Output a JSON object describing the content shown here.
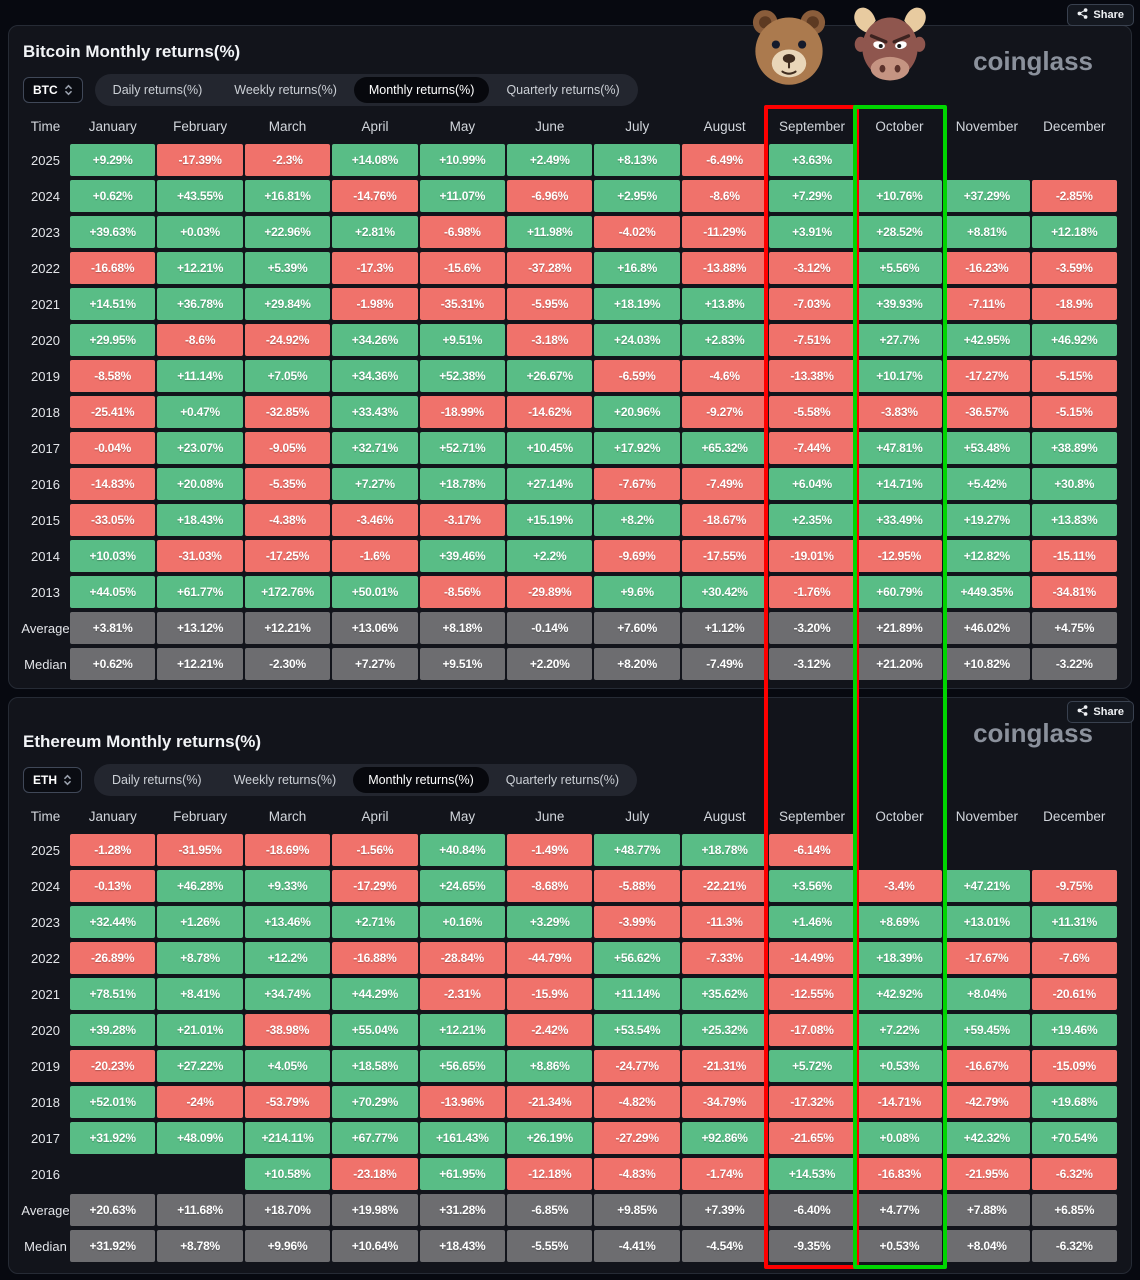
{
  "brand": "coinglass",
  "share_label": "Share",
  "time_label": "Time",
  "months": [
    "January",
    "February",
    "March",
    "April",
    "May",
    "June",
    "July",
    "August",
    "September",
    "October",
    "November",
    "December"
  ],
  "tabs": [
    "Daily returns(%)",
    "Weekly returns(%)",
    "Monthly returns(%)",
    "Quarterly returns(%)"
  ],
  "active_tab": "Monthly returns(%)",
  "colors": {
    "positive_cell": "#59bd86",
    "negative_cell": "#f0726b",
    "summary_cell": "#6d6d70",
    "september_box": "#fe0000",
    "october_box": "#00d600",
    "panel_bg": "#12141b",
    "page_bg": "#070910"
  },
  "icons": [
    "share-icon",
    "unfold-icon",
    "bear-emoji-icon",
    "bull-emoji-icon"
  ],
  "bitcoin": {
    "title": "Bitcoin Monthly returns(%)",
    "symbol": "BTC",
    "rows": [
      {
        "label": "2025",
        "values": [
          "+9.29%",
          "-17.39%",
          "-2.3%",
          "+14.08%",
          "+10.99%",
          "+2.49%",
          "+8.13%",
          "-6.49%",
          "+3.63%",
          "",
          "",
          ""
        ]
      },
      {
        "label": "2024",
        "values": [
          "+0.62%",
          "+43.55%",
          "+16.81%",
          "-14.76%",
          "+11.07%",
          "-6.96%",
          "+2.95%",
          "-8.6%",
          "+7.29%",
          "+10.76%",
          "+37.29%",
          "-2.85%"
        ]
      },
      {
        "label": "2023",
        "values": [
          "+39.63%",
          "+0.03%",
          "+22.96%",
          "+2.81%",
          "-6.98%",
          "+11.98%",
          "-4.02%",
          "-11.29%",
          "+3.91%",
          "+28.52%",
          "+8.81%",
          "+12.18%"
        ]
      },
      {
        "label": "2022",
        "values": [
          "-16.68%",
          "+12.21%",
          "+5.39%",
          "-17.3%",
          "-15.6%",
          "-37.28%",
          "+16.8%",
          "-13.88%",
          "-3.12%",
          "+5.56%",
          "-16.23%",
          "-3.59%"
        ]
      },
      {
        "label": "2021",
        "values": [
          "+14.51%",
          "+36.78%",
          "+29.84%",
          "-1.98%",
          "-35.31%",
          "-5.95%",
          "+18.19%",
          "+13.8%",
          "-7.03%",
          "+39.93%",
          "-7.11%",
          "-18.9%"
        ]
      },
      {
        "label": "2020",
        "values": [
          "+29.95%",
          "-8.6%",
          "-24.92%",
          "+34.26%",
          "+9.51%",
          "-3.18%",
          "+24.03%",
          "+2.83%",
          "-7.51%",
          "+27.7%",
          "+42.95%",
          "+46.92%"
        ]
      },
      {
        "label": "2019",
        "values": [
          "-8.58%",
          "+11.14%",
          "+7.05%",
          "+34.36%",
          "+52.38%",
          "+26.67%",
          "-6.59%",
          "-4.6%",
          "-13.38%",
          "+10.17%",
          "-17.27%",
          "-5.15%"
        ]
      },
      {
        "label": "2018",
        "values": [
          "-25.41%",
          "+0.47%",
          "-32.85%",
          "+33.43%",
          "-18.99%",
          "-14.62%",
          "+20.96%",
          "-9.27%",
          "-5.58%",
          "-3.83%",
          "-36.57%",
          "-5.15%"
        ]
      },
      {
        "label": "2017",
        "values": [
          "-0.04%",
          "+23.07%",
          "-9.05%",
          "+32.71%",
          "+52.71%",
          "+10.45%",
          "+17.92%",
          "+65.32%",
          "-7.44%",
          "+47.81%",
          "+53.48%",
          "+38.89%"
        ]
      },
      {
        "label": "2016",
        "values": [
          "-14.83%",
          "+20.08%",
          "-5.35%",
          "+7.27%",
          "+18.78%",
          "+27.14%",
          "-7.67%",
          "-7.49%",
          "+6.04%",
          "+14.71%",
          "+5.42%",
          "+30.8%"
        ]
      },
      {
        "label": "2015",
        "values": [
          "-33.05%",
          "+18.43%",
          "-4.38%",
          "-3.46%",
          "-3.17%",
          "+15.19%",
          "+8.2%",
          "-18.67%",
          "+2.35%",
          "+33.49%",
          "+19.27%",
          "+13.83%"
        ]
      },
      {
        "label": "2014",
        "values": [
          "+10.03%",
          "-31.03%",
          "-17.25%",
          "-1.6%",
          "+39.46%",
          "+2.2%",
          "-9.69%",
          "-17.55%",
          "-19.01%",
          "-12.95%",
          "+12.82%",
          "-15.11%"
        ]
      },
      {
        "label": "2013",
        "values": [
          "+44.05%",
          "+61.77%",
          "+172.76%",
          "+50.01%",
          "-8.56%",
          "-29.89%",
          "+9.6%",
          "+30.42%",
          "-1.76%",
          "+60.79%",
          "+449.35%",
          "-34.81%"
        ]
      },
      {
        "label": "Average",
        "values": [
          "+3.81%",
          "+13.12%",
          "+12.21%",
          "+13.06%",
          "+8.18%",
          "-0.14%",
          "+7.60%",
          "+1.12%",
          "-3.20%",
          "+21.89%",
          "+46.02%",
          "+4.75%"
        ]
      },
      {
        "label": "Median",
        "values": [
          "+0.62%",
          "+12.21%",
          "-2.30%",
          "+7.27%",
          "+9.51%",
          "+2.20%",
          "+8.20%",
          "-7.49%",
          "-3.12%",
          "+21.20%",
          "+10.82%",
          "-3.22%"
        ]
      }
    ]
  },
  "ethereum": {
    "title": "Ethereum Monthly returns(%)",
    "symbol": "ETH",
    "rows": [
      {
        "label": "2025",
        "values": [
          "-1.28%",
          "-31.95%",
          "-18.69%",
          "-1.56%",
          "+40.84%",
          "-1.49%",
          "+48.77%",
          "+18.78%",
          "-6.14%",
          "",
          "",
          ""
        ]
      },
      {
        "label": "2024",
        "values": [
          "-0.13%",
          "+46.28%",
          "+9.33%",
          "-17.29%",
          "+24.65%",
          "-8.68%",
          "-5.88%",
          "-22.21%",
          "+3.56%",
          "-3.4%",
          "+47.21%",
          "-9.75%"
        ]
      },
      {
        "label": "2023",
        "values": [
          "+32.44%",
          "+1.26%",
          "+13.46%",
          "+2.71%",
          "+0.16%",
          "+3.29%",
          "-3.99%",
          "-11.3%",
          "+1.46%",
          "+8.69%",
          "+13.01%",
          "+11.31%"
        ]
      },
      {
        "label": "2022",
        "values": [
          "-26.89%",
          "+8.78%",
          "+12.2%",
          "-16.88%",
          "-28.84%",
          "-44.79%",
          "+56.62%",
          "-7.33%",
          "-14.49%",
          "+18.39%",
          "-17.67%",
          "-7.6%"
        ]
      },
      {
        "label": "2021",
        "values": [
          "+78.51%",
          "+8.41%",
          "+34.74%",
          "+44.29%",
          "-2.31%",
          "-15.9%",
          "+11.14%",
          "+35.62%",
          "-12.55%",
          "+42.92%",
          "+8.04%",
          "-20.61%"
        ]
      },
      {
        "label": "2020",
        "values": [
          "+39.28%",
          "+21.01%",
          "-38.98%",
          "+55.04%",
          "+12.21%",
          "-2.42%",
          "+53.54%",
          "+25.32%",
          "-17.08%",
          "+7.22%",
          "+59.45%",
          "+19.46%"
        ]
      },
      {
        "label": "2019",
        "values": [
          "-20.23%",
          "+27.22%",
          "+4.05%",
          "+18.58%",
          "+56.65%",
          "+8.86%",
          "-24.77%",
          "-21.31%",
          "+5.72%",
          "+0.53%",
          "-16.67%",
          "-15.09%"
        ]
      },
      {
        "label": "2018",
        "values": [
          "+52.01%",
          "-24%",
          "-53.79%",
          "+70.29%",
          "-13.96%",
          "-21.34%",
          "-4.82%",
          "-34.79%",
          "-17.32%",
          "-14.71%",
          "-42.79%",
          "+19.68%"
        ]
      },
      {
        "label": "2017",
        "values": [
          "+31.92%",
          "+48.09%",
          "+214.11%",
          "+67.77%",
          "+161.43%",
          "+26.19%",
          "-27.29%",
          "+92.86%",
          "-21.65%",
          "+0.08%",
          "+42.32%",
          "+70.54%"
        ]
      },
      {
        "label": "2016",
        "values": [
          "",
          "",
          "+10.58%",
          "-23.18%",
          "+61.95%",
          "-12.18%",
          "-4.83%",
          "-1.74%",
          "+14.53%",
          "-16.83%",
          "-21.95%",
          "-6.32%"
        ]
      },
      {
        "label": "Average",
        "values": [
          "+20.63%",
          "+11.68%",
          "+18.70%",
          "+19.98%",
          "+31.28%",
          "-6.85%",
          "+9.85%",
          "+7.39%",
          "-6.40%",
          "+4.77%",
          "+7.88%",
          "+6.85%"
        ]
      },
      {
        "label": "Median",
        "values": [
          "+31.92%",
          "+8.78%",
          "+9.96%",
          "+10.64%",
          "+18.43%",
          "-5.55%",
          "-4.41%",
          "-4.54%",
          "-9.35%",
          "+0.53%",
          "+8.04%",
          "-6.32%"
        ]
      }
    ]
  }
}
